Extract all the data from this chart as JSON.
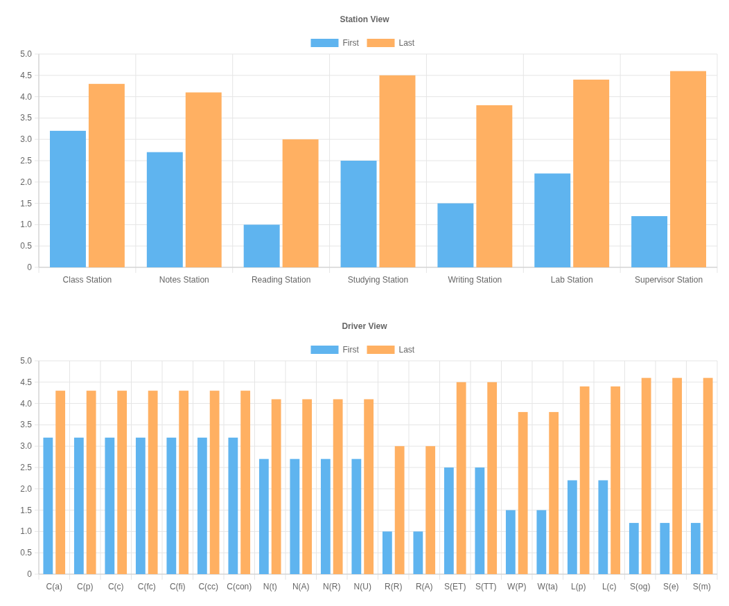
{
  "chart_data": [
    {
      "type": "bar",
      "title": "Station View",
      "categories": [
        "Class Station",
        "Notes Station",
        "Reading Station",
        "Studying Station",
        "Writing Station",
        "Lab Station",
        "Supervisor Station"
      ],
      "series": [
        {
          "name": "First",
          "color": "#5fb4ef",
          "values": [
            3.2,
            2.7,
            1.0,
            2.5,
            1.5,
            2.2,
            1.2
          ]
        },
        {
          "name": "Last",
          "color": "#ffb062",
          "values": [
            4.3,
            4.1,
            3.0,
            4.5,
            3.8,
            4.4,
            4.6
          ]
        }
      ],
      "ylim": [
        0,
        5
      ],
      "yticks": [
        {
          "value": 0,
          "label": "0"
        },
        0.5,
        {
          "value": 1,
          "label": "1.0"
        },
        1.5,
        {
          "value": 2,
          "label": "2.0"
        },
        2.5,
        {
          "value": 3,
          "label": "3.0"
        },
        3.5,
        {
          "value": 4,
          "label": "4.0"
        },
        4.5,
        {
          "value": 5,
          "label": "5.0"
        }
      ],
      "grid": true,
      "legend": "top"
    },
    {
      "type": "bar",
      "title": "Driver View",
      "categories": [
        "C(a)",
        "C(p)",
        "C(c)",
        "C(fc)",
        "C(fi)",
        "C(cc)",
        "C(con)",
        "N(t)",
        "N(A)",
        "N(R)",
        "N(U)",
        "R(R)",
        "R(A)",
        "S(ET)",
        "S(TT)",
        "W(P)",
        "W(ta)",
        "L(p)",
        "L(c)",
        "S(og)",
        "S(e)",
        "S(m)"
      ],
      "series": [
        {
          "name": "First",
          "color": "#5fb4ef",
          "values": [
            3.2,
            3.2,
            3.2,
            3.2,
            3.2,
            3.2,
            3.2,
            2.7,
            2.7,
            2.7,
            2.7,
            1.0,
            1.0,
            2.5,
            2.5,
            1.5,
            1.5,
            2.2,
            2.2,
            1.2,
            1.2,
            1.2
          ]
        },
        {
          "name": "Last",
          "color": "#ffb062",
          "values": [
            4.3,
            4.3,
            4.3,
            4.3,
            4.3,
            4.3,
            4.3,
            4.1,
            4.1,
            4.1,
            4.1,
            3.0,
            3.0,
            4.5,
            4.5,
            3.8,
            3.8,
            4.4,
            4.4,
            4.6,
            4.6,
            4.6
          ]
        }
      ],
      "ylim": [
        0,
        5
      ],
      "yticks": [
        {
          "value": 0,
          "label": "0"
        },
        0.5,
        {
          "value": 1,
          "label": "1.0"
        },
        1.5,
        {
          "value": 2,
          "label": "2.0"
        },
        2.5,
        {
          "value": 3,
          "label": "3.0"
        },
        3.5,
        {
          "value": 4,
          "label": "4.0"
        },
        4.5,
        {
          "value": 5,
          "label": "5.0"
        }
      ],
      "grid": true,
      "legend": "top"
    }
  ]
}
